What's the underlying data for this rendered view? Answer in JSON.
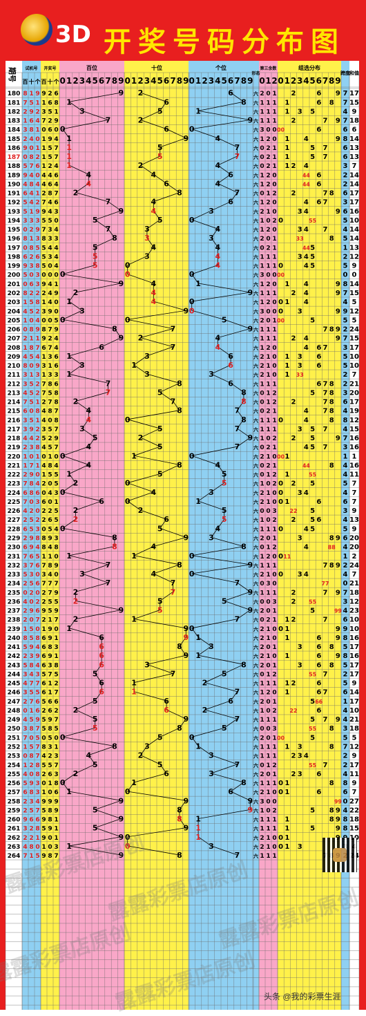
{
  "header": {
    "title_3d": "3D",
    "title_main": "开奖号码分布图",
    "colors": {
      "banner": "#e81f1f",
      "title_main": "#ffe600",
      "title_3d": "#ffffff"
    }
  },
  "columns": {
    "issue": "期号",
    "trial": "试机号",
    "trial_sub": [
      "百",
      "十",
      "个"
    ],
    "draw": "开奖号",
    "draw_sub": [
      "百",
      "十",
      "个"
    ],
    "hundreds": "百位",
    "tens": "十位",
    "units": "个位",
    "mod3": "第三余数",
    "mod3_sub": [
      "0",
      "1",
      "2"
    ],
    "group": "组选分布",
    "span": "跨度",
    "sum": "和值",
    "axis_digits": [
      "0",
      "1",
      "2",
      "3",
      "4",
      "5",
      "6",
      "7",
      "8",
      "9"
    ],
    "ratio_label": "形态"
  },
  "colors": {
    "hundreds_bg": "#f9a7c8",
    "tens_bg": "#fff14a",
    "units_bg": "#8fd0f2",
    "mod3_bg": "#f9a7c8",
    "group_bg": "#fff14a",
    "span_bg": "#8fd0f2",
    "draw_bg": "#fff14a",
    "trial_bg": "#8fd0f2",
    "issue_bg": "#ffffff",
    "mark_normal": "#000000",
    "mark_repeat": "#e02020",
    "line": "#000000"
  },
  "chart_data": {
    "type": "table",
    "title": "3D 开奖号码分布图",
    "rows": [
      {
        "issue": "180",
        "trial": "819",
        "draw": "926",
        "span": 7,
        "sum": 17
      },
      {
        "issue": "181",
        "trial": "751",
        "draw": "168",
        "span": 7,
        "sum": 15
      },
      {
        "issue": "182",
        "trial": "292",
        "draw": "351",
        "span": 4,
        "sum": 9
      },
      {
        "issue": "183",
        "trial": "164",
        "draw": "729",
        "span": 7,
        "sum": 18
      },
      {
        "issue": "184",
        "trial": "381",
        "draw": "060",
        "span": 6,
        "sum": 6
      },
      {
        "issue": "185",
        "trial": "240",
        "draw": "194",
        "span": 8,
        "sum": 14
      },
      {
        "issue": "186",
        "trial": "901",
        "draw": "157",
        "span": 6,
        "sum": 13
      },
      {
        "issue": "187",
        "trial": "082",
        "draw": "157",
        "span": 6,
        "sum": 13
      },
      {
        "issue": "188",
        "trial": "576",
        "draw": "124",
        "span": 3,
        "sum": 7
      },
      {
        "issue": "189",
        "trial": "940",
        "draw": "446",
        "span": 2,
        "sum": 14
      },
      {
        "issue": "190",
        "trial": "484",
        "draw": "464",
        "span": 2,
        "sum": 14
      },
      {
        "issue": "191",
        "trial": "641",
        "draw": "287",
        "span": 6,
        "sum": 17
      },
      {
        "issue": "192",
        "trial": "542",
        "draw": "746",
        "span": 3,
        "sum": 17
      },
      {
        "issue": "193",
        "trial": "519",
        "draw": "943",
        "span": 6,
        "sum": 16
      },
      {
        "issue": "194",
        "trial": "333",
        "draw": "550",
        "span": 5,
        "sum": 10
      },
      {
        "issue": "195",
        "trial": "029",
        "draw": "734",
        "span": 4,
        "sum": 14
      },
      {
        "issue": "196",
        "trial": "813",
        "draw": "833",
        "span": 5,
        "sum": 14
      },
      {
        "issue": "197",
        "trial": "085",
        "draw": "544",
        "span": 1,
        "sum": 13
      },
      {
        "issue": "198",
        "trial": "626",
        "draw": "534",
        "span": 2,
        "sum": 12
      },
      {
        "issue": "199",
        "trial": "938",
        "draw": "504",
        "span": 5,
        "sum": 9
      },
      {
        "issue": "200",
        "trial": "503",
        "draw": "000",
        "span": 0,
        "sum": 0
      },
      {
        "issue": "201",
        "trial": "063",
        "draw": "941",
        "span": 8,
        "sum": 14
      },
      {
        "issue": "202",
        "trial": "822",
        "draw": "249",
        "span": 7,
        "sum": 15
      },
      {
        "issue": "203",
        "trial": "158",
        "draw": "140",
        "span": 4,
        "sum": 5
      },
      {
        "issue": "204",
        "trial": "452",
        "draw": "390",
        "span": 9,
        "sum": 12
      },
      {
        "issue": "205",
        "trial": "104",
        "draw": "005",
        "span": 5,
        "sum": 5
      },
      {
        "issue": "206",
        "trial": "089",
        "draw": "879",
        "span": 2,
        "sum": 24
      },
      {
        "issue": "207",
        "trial": "211",
        "draw": "924",
        "span": 7,
        "sum": 15
      },
      {
        "issue": "208",
        "trial": "187",
        "draw": "674",
        "span": 3,
        "sum": 17
      },
      {
        "issue": "209",
        "trial": "454",
        "draw": "136",
        "span": 5,
        "sum": 10
      },
      {
        "issue": "210",
        "trial": "809",
        "draw": "316",
        "span": 5,
        "sum": 10
      },
      {
        "issue": "211",
        "trial": "313",
        "draw": "133",
        "span": 2,
        "sum": 7
      },
      {
        "issue": "212",
        "trial": "352",
        "draw": "786",
        "span": 2,
        "sum": 21
      },
      {
        "issue": "213",
        "trial": "452",
        "draw": "758",
        "span": 3,
        "sum": 20
      },
      {
        "issue": "214",
        "trial": "751",
        "draw": "278",
        "span": 6,
        "sum": 17
      },
      {
        "issue": "215",
        "trial": "608",
        "draw": "487",
        "span": 4,
        "sum": 19
      },
      {
        "issue": "216",
        "trial": "351",
        "draw": "408",
        "span": 8,
        "sum": 12
      },
      {
        "issue": "217",
        "trial": "392",
        "draw": "357",
        "span": 4,
        "sum": 15
      },
      {
        "issue": "218",
        "trial": "442",
        "draw": "529",
        "span": 7,
        "sum": 16
      },
      {
        "issue": "219",
        "trial": "238",
        "draw": "457",
        "span": 3,
        "sum": 16
      },
      {
        "issue": "220",
        "trial": "101",
        "draw": "010",
        "span": 1,
        "sum": 1
      },
      {
        "issue": "221",
        "trial": "171",
        "draw": "484",
        "span": 4,
        "sum": 16
      },
      {
        "issue": "222",
        "trial": "290",
        "draw": "155",
        "span": 4,
        "sum": 11
      },
      {
        "issue": "223",
        "trial": "784",
        "draw": "205",
        "span": 5,
        "sum": 7
      },
      {
        "issue": "224",
        "trial": "686",
        "draw": "043",
        "span": 4,
        "sum": 7
      },
      {
        "issue": "225",
        "trial": "703",
        "draw": "601",
        "span": 6,
        "sum": 7
      },
      {
        "issue": "226",
        "trial": "420",
        "draw": "225",
        "span": 3,
        "sum": 9
      },
      {
        "issue": "227",
        "trial": "252",
        "draw": "265",
        "span": 4,
        "sum": 13
      },
      {
        "issue": "228",
        "trial": "653",
        "draw": "054",
        "span": 5,
        "sum": 9
      },
      {
        "issue": "229",
        "trial": "298",
        "draw": "893",
        "span": 6,
        "sum": 20
      },
      {
        "issue": "230",
        "trial": "694",
        "draw": "848",
        "span": 4,
        "sum": 20
      },
      {
        "issue": "231",
        "trial": "765",
        "draw": "110",
        "span": 1,
        "sum": 2
      },
      {
        "issue": "232",
        "trial": "376",
        "draw": "789",
        "span": 2,
        "sum": 24
      },
      {
        "issue": "233",
        "trial": "530",
        "draw": "340",
        "span": 4,
        "sum": 7
      },
      {
        "issue": "234",
        "trial": "256",
        "draw": "777",
        "span": 0,
        "sum": 21
      },
      {
        "issue": "235",
        "trial": "020",
        "draw": "279",
        "span": 7,
        "sum": 18
      },
      {
        "issue": "236",
        "trial": "402",
        "draw": "255",
        "span": 3,
        "sum": 12
      },
      {
        "issue": "237",
        "trial": "296",
        "draw": "959",
        "span": 4,
        "sum": 23
      },
      {
        "issue": "238",
        "trial": "207",
        "draw": "217",
        "span": 6,
        "sum": 10
      },
      {
        "issue": "239",
        "trial": "150",
        "draw": "190",
        "span": 9,
        "sum": 10
      },
      {
        "issue": "240",
        "trial": "858",
        "draw": "691",
        "span": 8,
        "sum": 16
      },
      {
        "issue": "241",
        "trial": "594",
        "draw": "683",
        "span": 5,
        "sum": 17
      },
      {
        "issue": "242",
        "trial": "239",
        "draw": "691",
        "span": 8,
        "sum": 16
      },
      {
        "issue": "243",
        "trial": "584",
        "draw": "638",
        "span": 5,
        "sum": 17
      },
      {
        "issue": "244",
        "trial": "343",
        "draw": "575",
        "span": 2,
        "sum": 17
      },
      {
        "issue": "245",
        "trial": "477",
        "draw": "612",
        "span": 5,
        "sum": 9
      },
      {
        "issue": "246",
        "trial": "355",
        "draw": "617",
        "span": 6,
        "sum": 14
      },
      {
        "issue": "247",
        "trial": "276",
        "draw": "566",
        "span": 1,
        "sum": 17
      },
      {
        "issue": "248",
        "trial": "016",
        "draw": "262",
        "span": 4,
        "sum": 10
      },
      {
        "issue": "249",
        "trial": "459",
        "draw": "597",
        "span": 4,
        "sum": 21
      },
      {
        "issue": "250",
        "trial": "387",
        "draw": "585",
        "span": 3,
        "sum": 18
      },
      {
        "issue": "251",
        "trial": "705",
        "draw": "050",
        "span": 5,
        "sum": 5
      },
      {
        "issue": "252",
        "trial": "157",
        "draw": "831",
        "span": 7,
        "sum": 12
      },
      {
        "issue": "253",
        "trial": "087",
        "draw": "423",
        "span": 2,
        "sum": 9
      },
      {
        "issue": "254",
        "trial": "128",
        "draw": "557",
        "span": 2,
        "sum": 17
      },
      {
        "issue": "255",
        "trial": "408",
        "draw": "263",
        "span": 4,
        "sum": 11
      },
      {
        "issue": "256",
        "trial": "593",
        "draw": "018",
        "span": 8,
        "sum": 9
      },
      {
        "issue": "257",
        "trial": "683",
        "draw": "106",
        "span": 6,
        "sum": 7
      },
      {
        "issue": "258",
        "trial": "234",
        "draw": "999",
        "span": 0,
        "sum": 27
      },
      {
        "issue": "259",
        "trial": "257",
        "draw": "589",
        "span": 4,
        "sum": 22
      },
      {
        "issue": "260",
        "trial": "966",
        "draw": "981",
        "span": 8,
        "sum": 18
      },
      {
        "issue": "261",
        "trial": "328",
        "draw": "591",
        "span": 8,
        "sum": 15
      },
      {
        "issue": "262",
        "trial": "221",
        "draw": "901",
        "span": 9,
        "sum": 10
      },
      {
        "issue": "263",
        "trial": "480",
        "draw": "103",
        "span": 3,
        "sum": 4
      },
      {
        "issue": "264",
        "trial": "715",
        "draw": "987",
        "span": 2,
        "sum": 24
      }
    ]
  },
  "watermark": "露露彩票店原创",
  "footer_credit": "头条 @我的彩票生涯"
}
